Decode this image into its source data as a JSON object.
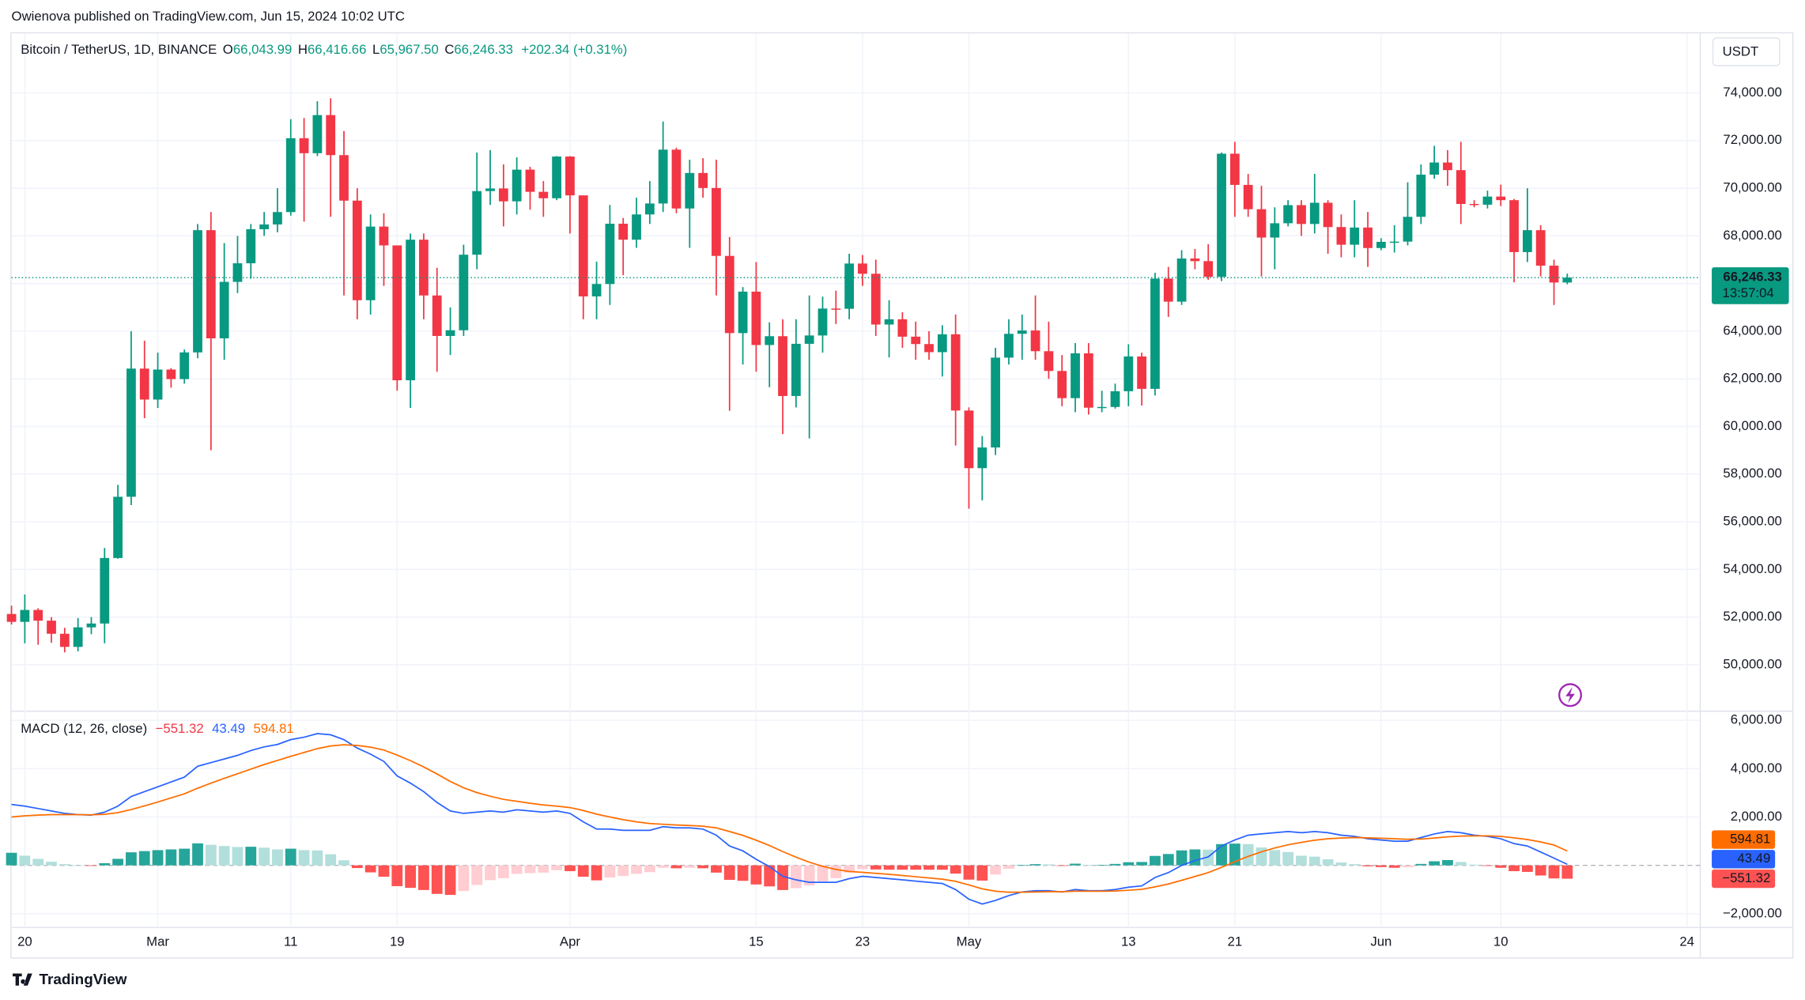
{
  "header": {
    "published": "Owienova published on TradingView.com, Jun 15, 2024 10:02 UTC"
  },
  "chart_data": [
    {
      "type": "candlestick",
      "legend": {
        "symbol": "Bitcoin / TetherUS, 1D, BINANCE",
        "o": "O",
        "open": "66,043.99",
        "h": "H",
        "high": "66,416.66",
        "l": "L",
        "low": "65,967.50",
        "c": "C",
        "close": "66,246.33",
        "change": "+202.34 (+0.31%)"
      },
      "currency": "USDT",
      "last_price_label": "66,246.33",
      "countdown": "13:57:04",
      "up_color": "#089981",
      "down_color": "#f23645",
      "grid": true,
      "x": [
        "2024-02-19",
        "2024-02-20",
        "2024-02-21",
        "2024-02-22",
        "2024-02-23",
        "2024-02-24",
        "2024-02-25",
        "2024-02-26",
        "2024-02-27",
        "2024-02-28",
        "2024-02-29",
        "2024-03-01",
        "2024-03-02",
        "2024-03-03",
        "2024-03-04",
        "2024-03-05",
        "2024-03-06",
        "2024-03-07",
        "2024-03-08",
        "2024-03-09",
        "2024-03-10",
        "2024-03-11",
        "2024-03-12",
        "2024-03-13",
        "2024-03-14",
        "2024-03-15",
        "2024-03-16",
        "2024-03-17",
        "2024-03-18",
        "2024-03-19",
        "2024-03-20",
        "2024-03-21",
        "2024-03-22",
        "2024-03-23",
        "2024-03-24",
        "2024-03-25",
        "2024-03-26",
        "2024-03-27",
        "2024-03-28",
        "2024-03-29",
        "2024-03-30",
        "2024-03-31",
        "2024-04-01",
        "2024-04-02",
        "2024-04-03",
        "2024-04-04",
        "2024-04-05",
        "2024-04-06",
        "2024-04-07",
        "2024-04-08",
        "2024-04-09",
        "2024-04-10",
        "2024-04-11",
        "2024-04-12",
        "2024-04-13",
        "2024-04-14",
        "2024-04-15",
        "2024-04-16",
        "2024-04-17",
        "2024-04-18",
        "2024-04-19",
        "2024-04-20",
        "2024-04-21",
        "2024-04-22",
        "2024-04-23",
        "2024-04-24",
        "2024-04-25",
        "2024-04-26",
        "2024-04-27",
        "2024-04-28",
        "2024-04-29",
        "2024-04-30",
        "2024-05-01",
        "2024-05-02",
        "2024-05-03",
        "2024-05-04",
        "2024-05-05",
        "2024-05-06",
        "2024-05-07",
        "2024-05-08",
        "2024-05-09",
        "2024-05-10",
        "2024-05-11",
        "2024-05-12",
        "2024-05-13",
        "2024-05-14",
        "2024-05-15",
        "2024-05-16",
        "2024-05-17",
        "2024-05-18",
        "2024-05-19",
        "2024-05-20",
        "2024-05-21",
        "2024-05-22",
        "2024-05-23",
        "2024-05-24",
        "2024-05-25",
        "2024-05-26",
        "2024-05-27",
        "2024-05-28",
        "2024-05-29",
        "2024-05-30",
        "2024-05-31",
        "2024-06-01",
        "2024-06-02",
        "2024-06-03",
        "2024-06-04",
        "2024-06-05",
        "2024-06-06",
        "2024-06-07",
        "2024-06-08",
        "2024-06-09",
        "2024-06-10",
        "2024-06-11",
        "2024-06-12",
        "2024-06-13",
        "2024-06-14",
        "2024-06-15"
      ],
      "open": [
        52130,
        51800,
        52300,
        51850,
        51300,
        50750,
        51570,
        51730,
        54480,
        57050,
        62430,
        61130,
        62390,
        61990,
        63110,
        68240,
        63700,
        66070,
        66850,
        68280,
        68480,
        69000,
        72100,
        71470,
        73070,
        71390,
        69480,
        65300,
        68390,
        67600,
        61940,
        67840,
        65500,
        63800,
        64040,
        67210,
        69880,
        69990,
        69450,
        70780,
        69850,
        69580,
        71330,
        69700,
        65460,
        65980,
        68510,
        67840,
        68900,
        69360,
        71620,
        69150,
        70640,
        70010,
        67160,
        63920,
        65660,
        63420,
        63790,
        61280,
        63470,
        63820,
        64950,
        64940,
        66840,
        66410,
        64280,
        64500,
        63770,
        63460,
        63120,
        63870,
        60670,
        58250,
        59120,
        62890,
        63890,
        64030,
        63160,
        62330,
        61190,
        63070,
        60790,
        60820,
        61480,
        62940,
        61580,
        66210,
        65240,
        67050,
        66940,
        66280,
        71450,
        70140,
        69120,
        67930,
        68530,
        69290,
        68500,
        69390,
        68370,
        67630,
        68350,
        67490,
        67750,
        67760,
        68800,
        70570,
        71080,
        70760,
        69340,
        69310,
        69650,
        69500,
        67320,
        68240,
        66750,
        66043.99
      ],
      "high": [
        52480,
        52950,
        52370,
        52000,
        51550,
        51960,
        52000,
        54900,
        57550,
        64000,
        63600,
        63100,
        62450,
        63230,
        68500,
        69000,
        67700,
        68000,
        68500,
        69000,
        70000,
        72900,
        72950,
        73650,
        73780,
        72400,
        70000,
        68900,
        68950,
        67600,
        68100,
        68100,
        66660,
        65000,
        67630,
        71500,
        71600,
        71000,
        71300,
        70900,
        70300,
        71350,
        71350,
        69700,
        66920,
        69300,
        68750,
        69600,
        70300,
        72800,
        71700,
        71200,
        71260,
        71200,
        67950,
        65850,
        66900,
        64370,
        64500,
        64500,
        65500,
        65450,
        65700,
        67250,
        67200,
        67000,
        65300,
        64800,
        64400,
        64000,
        64250,
        64700,
        60800,
        59600,
        63300,
        64500,
        64700,
        65500,
        64400,
        63000,
        63500,
        63500,
        61500,
        61800,
        63450,
        63100,
        66450,
        66700,
        67400,
        67450,
        67650,
        71500,
        71950,
        70600,
        70100,
        69200,
        69500,
        69500,
        70600,
        69500,
        68900,
        69500,
        69000,
        67900,
        68450,
        70250,
        71000,
        71780,
        71600,
        71950,
        69500,
        69900,
        70150,
        69550,
        70000,
        68450,
        67000,
        66416.66
      ],
      "low": [
        51690,
        50900,
        50840,
        50920,
        50520,
        50560,
        51280,
        50900,
        54450,
        56700,
        60350,
        60780,
        61630,
        61800,
        62860,
        59000,
        62800,
        65600,
        66200,
        68000,
        68150,
        68850,
        68600,
        71350,
        68800,
        65500,
        64500,
        64700,
        65900,
        61500,
        60780,
        64500,
        62300,
        63000,
        63800,
        66600,
        69300,
        68400,
        68900,
        69100,
        68800,
        69500,
        68100,
        64500,
        64500,
        65100,
        66350,
        67500,
        68500,
        69000,
        68950,
        67500,
        69600,
        65500,
        60660,
        62600,
        62300,
        61650,
        59680,
        60800,
        59500,
        63100,
        64300,
        64500,
        65900,
        63800,
        62900,
        63300,
        62800,
        62800,
        62100,
        59200,
        56550,
        56900,
        58800,
        62600,
        62800,
        62800,
        62000,
        60850,
        60600,
        60500,
        60600,
        60750,
        60850,
        60880,
        61300,
        64600,
        65100,
        66600,
        66150,
        66100,
        68800,
        68800,
        66300,
        66600,
        68400,
        68000,
        68100,
        67250,
        67100,
        67100,
        66700,
        67400,
        67300,
        67600,
        68500,
        70400,
        70100,
        68500,
        69200,
        69150,
        69250,
        66050,
        66900,
        66300,
        65100,
        65967.5
      ],
      "close": [
        51800,
        52300,
        51850,
        51300,
        50750,
        51570,
        51730,
        54480,
        57050,
        62430,
        61130,
        62390,
        61990,
        63110,
        68240,
        63700,
        66070,
        66850,
        68280,
        68480,
        69000,
        72100,
        71470,
        73070,
        71390,
        69480,
        65300,
        68390,
        67600,
        61940,
        67840,
        65500,
        63800,
        64040,
        67210,
        69880,
        69990,
        69450,
        70780,
        69850,
        69580,
        71330,
        69700,
        65460,
        65980,
        68510,
        67840,
        68900,
        69360,
        71620,
        69150,
        70640,
        70010,
        67160,
        63920,
        65660,
        63420,
        63790,
        61280,
        63470,
        63820,
        64950,
        64940,
        66840,
        66410,
        64280,
        64500,
        63770,
        63460,
        63120,
        63870,
        60670,
        58250,
        59120,
        62890,
        63890,
        64030,
        63160,
        62330,
        61190,
        63070,
        60790,
        60820,
        61480,
        62940,
        61580,
        66210,
        65240,
        67050,
        66940,
        66280,
        71450,
        70140,
        69120,
        67930,
        68530,
        69290,
        68500,
        69390,
        68370,
        67630,
        68350,
        67490,
        67750,
        67760,
        68800,
        70570,
        71080,
        70760,
        69340,
        69310,
        69650,
        69500,
        67320,
        68240,
        66750,
        66043.99,
        66246.33
      ],
      "xlim": [
        "2024-02-19",
        "2024-06-25"
      ],
      "xticks": [
        {
          "value": "2024-02-20",
          "label": "20"
        },
        {
          "value": "2024-03-01",
          "label": "Mar"
        },
        {
          "value": "2024-03-11",
          "label": "11"
        },
        {
          "value": "2024-03-19",
          "label": "19"
        },
        {
          "value": "2024-04-01",
          "label": "Apr"
        },
        {
          "value": "2024-04-15",
          "label": "15"
        },
        {
          "value": "2024-04-23",
          "label": "23"
        },
        {
          "value": "2024-05-01",
          "label": "May"
        },
        {
          "value": "2024-05-13",
          "label": "13"
        },
        {
          "value": "2024-05-21",
          "label": "21"
        },
        {
          "value": "2024-06-01",
          "label": "Jun"
        },
        {
          "value": "2024-06-10",
          "label": "10"
        },
        {
          "value": "2024-06-24",
          "label": "24"
        }
      ],
      "ylim": [
        48100,
        76500
      ],
      "yticks": [
        {
          "value": 50000,
          "label": "50,000.00"
        },
        {
          "value": 52000,
          "label": "52,000.00"
        },
        {
          "value": 54000,
          "label": "54,000.00"
        },
        {
          "value": 56000,
          "label": "56,000.00"
        },
        {
          "value": 58000,
          "label": "58,000.00"
        },
        {
          "value": 60000,
          "label": "60,000.00"
        },
        {
          "value": 62000,
          "label": "62,000.00"
        },
        {
          "value": 64000,
          "label": "64,000.00"
        },
        {
          "value": 66000,
          "label": "66,000.00"
        },
        {
          "value": 68000,
          "label": "68,000.00"
        },
        {
          "value": 70000,
          "label": "70,000.00"
        },
        {
          "value": 72000,
          "label": "72,000.00"
        },
        {
          "value": 74000,
          "label": "74,000.00"
        }
      ]
    },
    {
      "type": "macd",
      "legend": {
        "title": "MACD (12, 26, close)",
        "histogram": "−551.32",
        "macd": "43.49",
        "signal": "594.81"
      },
      "macd": {
        "color": "#2962ff",
        "values": [
          2520,
          2450,
          2350,
          2250,
          2150,
          2100,
          2080,
          2200,
          2450,
          2850,
          3050,
          3250,
          3450,
          3650,
          4100,
          4250,
          4400,
          4550,
          4750,
          4900,
          5000,
          5200,
          5300,
          5450,
          5400,
          5200,
          4850,
          4600,
          4300,
          3700,
          3400,
          3050,
          2600,
          2250,
          2150,
          2200,
          2250,
          2200,
          2300,
          2250,
          2200,
          2250,
          2150,
          1800,
          1500,
          1500,
          1450,
          1450,
          1450,
          1600,
          1550,
          1550,
          1500,
          1250,
          800,
          600,
          250,
          -50,
          -450,
          -600,
          -700,
          -700,
          -700,
          -550,
          -450,
          -500,
          -550,
          -600,
          -650,
          -700,
          -750,
          -1000,
          -1400,
          -1600,
          -1450,
          -1250,
          -1100,
          -1050,
          -1050,
          -1100,
          -1000,
          -1050,
          -1050,
          -1000,
          -900,
          -850,
          -500,
          -300,
          0,
          200,
          350,
          800,
          1050,
          1250,
          1300,
          1350,
          1400,
          1350,
          1400,
          1350,
          1250,
          1200,
          1100,
          1050,
          1000,
          1000,
          1150,
          1300,
          1400,
          1350,
          1250,
          1200,
          1100,
          900,
          800,
          550,
          300,
          43.49
        ]
      },
      "signal": {
        "color": "#ff6d00",
        "values": [
          2000,
          2050,
          2080,
          2100,
          2100,
          2100,
          2090,
          2110,
          2180,
          2310,
          2460,
          2620,
          2790,
          2960,
          3190,
          3400,
          3600,
          3790,
          3980,
          4170,
          4340,
          4510,
          4670,
          4830,
          4940,
          4990,
          4960,
          4890,
          4770,
          4560,
          4330,
          4070,
          3780,
          3470,
          3210,
          3010,
          2860,
          2730,
          2650,
          2570,
          2500,
          2450,
          2390,
          2270,
          2120,
          2000,
          1890,
          1800,
          1730,
          1700,
          1670,
          1650,
          1620,
          1550,
          1400,
          1240,
          1040,
          820,
          570,
          340,
          130,
          -40,
          -170,
          -250,
          -290,
          -330,
          -370,
          -420,
          -470,
          -520,
          -570,
          -660,
          -810,
          -970,
          -1070,
          -1110,
          -1110,
          -1100,
          -1090,
          -1090,
          -1070,
          -1070,
          -1070,
          -1060,
          -1030,
          -990,
          -890,
          -770,
          -620,
          -460,
          -300,
          -80,
          150,
          370,
          560,
          720,
          850,
          950,
          1040,
          1100,
          1130,
          1150,
          1140,
          1120,
          1100,
          1080,
          1090,
          1130,
          1180,
          1210,
          1220,
          1220,
          1200,
          1140,
          1070,
          970,
          840,
          594.81
        ]
      },
      "histogram": {
        "colors": {
          "pos_up": "#26a69a",
          "pos_down": "#b2dfdb",
          "neg_down": "#ff5252",
          "neg_up": "#ffcdd2"
        },
        "values": [
          520,
          400,
          270,
          150,
          50,
          0,
          -10,
          90,
          270,
          540,
          590,
          630,
          660,
          690,
          910,
          850,
          800,
          760,
          770,
          730,
          660,
          690,
          630,
          620,
          460,
          210,
          -110,
          -290,
          -470,
          -860,
          -930,
          -1020,
          -1180,
          -1220,
          -1060,
          -810,
          -610,
          -530,
          -350,
          -320,
          -300,
          -200,
          -240,
          -470,
          -620,
          -500,
          -440,
          -350,
          -280,
          -100,
          -120,
          -100,
          -120,
          -300,
          -600,
          -640,
          -790,
          -870,
          -1020,
          -940,
          -830,
          -660,
          -530,
          -300,
          -160,
          -170,
          -180,
          -180,
          -180,
          -180,
          -180,
          -340,
          -590,
          -630,
          -380,
          -140,
          10,
          50,
          40,
          -10,
          70,
          20,
          20,
          60,
          130,
          140,
          390,
          470,
          620,
          660,
          650,
          880,
          900,
          880,
          740,
          630,
          550,
          400,
          360,
          250,
          120,
          50,
          -40,
          -70,
          -100,
          -80,
          60,
          170,
          220,
          140,
          30,
          -20,
          -100,
          -240,
          -270,
          -420,
          -540,
          -551.32
        ]
      },
      "ylim": [
        -2570,
        6330
      ],
      "yticks": [
        {
          "value": -2000,
          "label": "−2,000.00"
        },
        {
          "value": 2000,
          "label": "2,000.00"
        },
        {
          "value": 4000,
          "label": "4,000.00"
        },
        {
          "value": 6000,
          "label": "6,000.00"
        }
      ]
    }
  ],
  "footer": {
    "brand": "TradingView"
  }
}
